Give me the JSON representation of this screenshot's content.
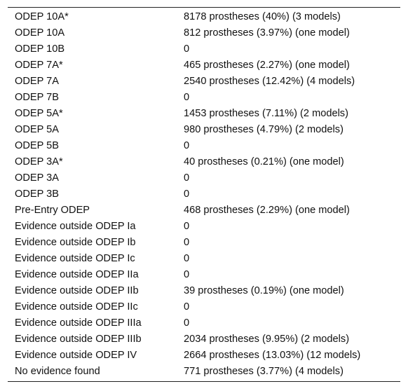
{
  "table": {
    "rows": [
      {
        "level": "ODEP 10A*",
        "value": "8178 prostheses (40%) (3 models)"
      },
      {
        "level": "ODEP 10A",
        "value": "812 prostheses (3.97%) (one model)"
      },
      {
        "level": "ODEP 10B",
        "value": "0"
      },
      {
        "level": "ODEP 7A*",
        "value": "465 prostheses (2.27%) (one model)"
      },
      {
        "level": "ODEP 7A",
        "value": "2540 prostheses (12.42%) (4 models)"
      },
      {
        "level": "ODEP 7B",
        "value": "0"
      },
      {
        "level": "ODEP 5A*",
        "value": "1453 prostheses (7.11%) (2 models)"
      },
      {
        "level": "ODEP 5A",
        "value": "980 prostheses (4.79%) (2 models)"
      },
      {
        "level": "ODEP 5B",
        "value": "0"
      },
      {
        "level": "ODEP 3A*",
        "value": "40 prostheses (0.21%) (one model)"
      },
      {
        "level": "ODEP 3A",
        "value": "0"
      },
      {
        "level": "ODEP 3B",
        "value": "0"
      },
      {
        "level": "Pre-Entry ODEP",
        "value": "468 prostheses (2.29%) (one model)"
      },
      {
        "level": "Evidence outside ODEP Ia",
        "value": "0"
      },
      {
        "level": "Evidence outside ODEP Ib",
        "value": "0"
      },
      {
        "level": "Evidence outside ODEP Ic",
        "value": "0"
      },
      {
        "level": "Evidence outside ODEP IIa",
        "value": "0"
      },
      {
        "level": "Evidence outside ODEP IIb",
        "value": "39 prostheses (0.19%) (one model)"
      },
      {
        "level": "Evidence outside ODEP IIc",
        "value": "0"
      },
      {
        "level": "Evidence outside ODEP IIIa",
        "value": "0"
      },
      {
        "level": "Evidence outside ODEP IIIb",
        "value": "2034 prostheses (9.95%) (2 models)"
      },
      {
        "level": "Evidence outside ODEP IV",
        "value": "2664 prostheses (13.03%) (12 models)"
      },
      {
        "level": "No evidence found",
        "value": "771 prostheses (3.77%) (4 models)"
      }
    ]
  }
}
